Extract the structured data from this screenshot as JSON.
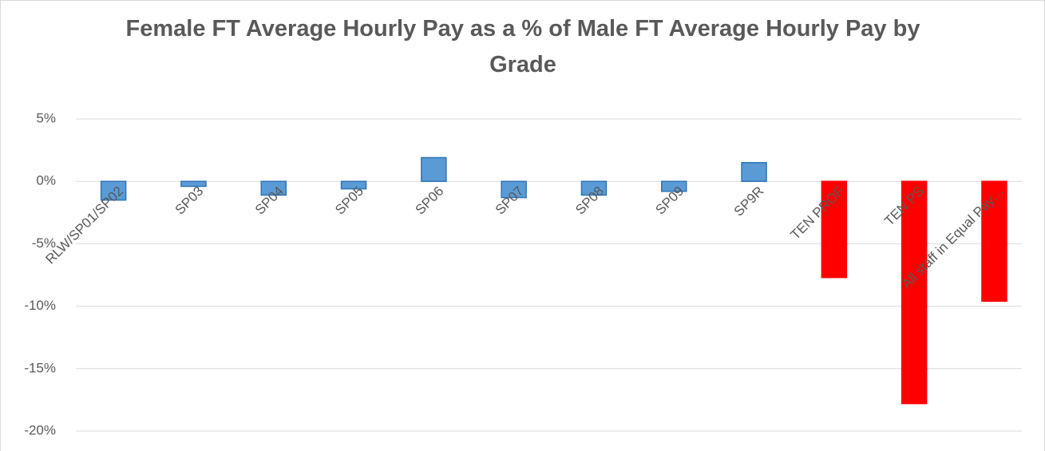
{
  "chart_data": {
    "type": "bar",
    "title": "Female FT Average Hourly Pay as a % of Male FT Average Hourly Pay by Grade",
    "categories": [
      "RLW/SP01/SP02",
      "SP03",
      "SP04",
      "SP05",
      "SP06",
      "SP07",
      "SP08",
      "SP09",
      "SP9R",
      "TEN PROF",
      "TEN PS",
      "All staff in Equal Pay…"
    ],
    "values": [
      -1.5,
      -0.4,
      -1.1,
      -0.6,
      1.9,
      -1.3,
      -1.1,
      -0.8,
      1.5,
      -7.7,
      -17.8,
      -9.6
    ],
    "colors": [
      "#5b9bd5",
      "#5b9bd5",
      "#5b9bd5",
      "#5b9bd5",
      "#5b9bd5",
      "#5b9bd5",
      "#5b9bd5",
      "#5b9bd5",
      "#5b9bd5",
      "#ff0000",
      "#ff0000",
      "#ff0000"
    ],
    "ylim": [
      -20,
      5
    ],
    "yticks": [
      {
        "value": -20,
        "label": "-20%"
      },
      {
        "value": -15,
        "label": "-15%"
      },
      {
        "value": -10,
        "label": "-10%"
      },
      {
        "value": -5,
        "label": "-5%"
      },
      {
        "value": 0,
        "label": "0%"
      },
      {
        "value": 5,
        "label": "5%"
      }
    ],
    "grid": true
  }
}
